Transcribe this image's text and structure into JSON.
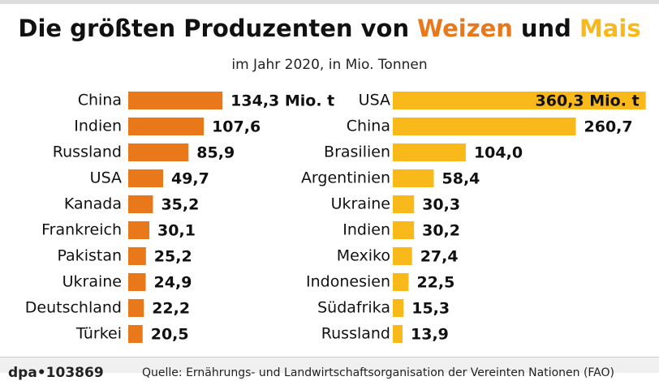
{
  "header": {
    "title": [
      "Die größten Produzenten von",
      "Weizen",
      "und",
      "Mais"
    ],
    "subtitle": "im Jahr 2020, in Mio. Tonnen"
  },
  "chart_data": [
    {
      "type": "bar",
      "orientation": "horizontal",
      "color": "#e8781a",
      "categories": [
        "China",
        "Indien",
        "Russland",
        "USA",
        "Kanada",
        "Frankreich",
        "Pakistan",
        "Ukraine",
        "Deutschland",
        "Türkei"
      ],
      "values": [
        134.3,
        107.6,
        85.9,
        49.7,
        35.2,
        30.1,
        25.2,
        24.9,
        22.2,
        20.5
      ],
      "value_labels": [
        "134,3 Mio. t",
        "107,6",
        "85,9",
        "49,7",
        "35,2",
        "30,1",
        "25,2",
        "24,9",
        "22,2",
        "20,5"
      ]
    },
    {
      "type": "bar",
      "orientation": "horizontal",
      "color": "#f9b91b",
      "categories": [
        "USA",
        "China",
        "Brasilien",
        "Argentinien",
        "Ukraine",
        "Indien",
        "Mexiko",
        "Indonesien",
        "Südafrika",
        "Russland"
      ],
      "values": [
        360.3,
        260.7,
        104.0,
        58.4,
        30.3,
        30.2,
        27.4,
        22.5,
        15.3,
        13.9
      ],
      "value_labels": [
        "360,3 Mio. t",
        "260,7",
        "104,0",
        "58,4",
        "30,3",
        "30,2",
        "27,4",
        "22,5",
        "15,3",
        "13,9"
      ]
    }
  ],
  "footer": {
    "id": "dpa•103869",
    "source": "Quelle: Ernährungs- und Landwirtschaftsorganisation der Vereinten Nationen (FAO)"
  }
}
